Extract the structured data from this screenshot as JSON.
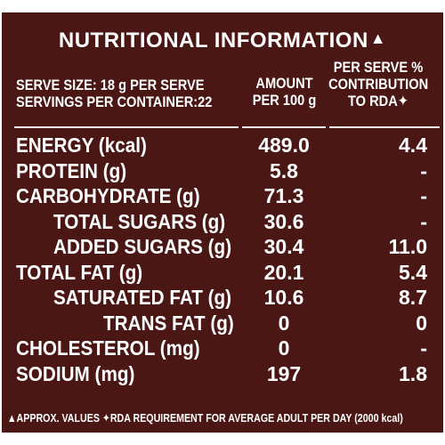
{
  "title": "NUTRITIONAL INFORMATION",
  "title_mark": "▲",
  "header": {
    "serve_size": "SERVE SIZE: 18 g PER SERVE",
    "servings": "SERVINGS PER CONTAINER:22",
    "amount_line1": "AMOUNT",
    "amount_line2": "PER 100 g",
    "rda_line1": "PER SERVE %",
    "rda_line2": "CONTRIBUTION",
    "rda_line3": "TO RDA✦"
  },
  "rows": [
    {
      "label": "ENERGY (kcal)",
      "amount": "489.0",
      "rda": "4.4"
    },
    {
      "label": "PROTEIN (g)",
      "amount": "5.8",
      "rda": "-"
    },
    {
      "label": "CARBOHYDRATE (g)",
      "amount": "71.3",
      "rda": "-"
    },
    {
      "label": "TOTAL SUGARS (g)",
      "amount": "30.6",
      "rda": "-"
    },
    {
      "label": "ADDED SUGARS (g)",
      "amount": "30.4",
      "rda": "11.0"
    },
    {
      "label": "TOTAL FAT (g)",
      "amount": "20.1",
      "rda": "5.4"
    },
    {
      "label": "SATURATED FAT (g)",
      "amount": "10.6",
      "rda": "8.7"
    },
    {
      "label": "TRANS FAT (g)",
      "amount": "0",
      "rda": "0"
    },
    {
      "label": "CHOLESTEROL (mg)",
      "amount": "0",
      "rda": "-"
    },
    {
      "label": "SODIUM (mg)",
      "amount": "197",
      "rda": "1.8"
    }
  ],
  "footer": "▲APPROX. VALUES ✦RDA REQUIREMENT FOR AVERAGE ADULT PER DAY (2000 kcal)",
  "colors": {
    "panel": "#4a1715",
    "text": "#ffffff"
  }
}
